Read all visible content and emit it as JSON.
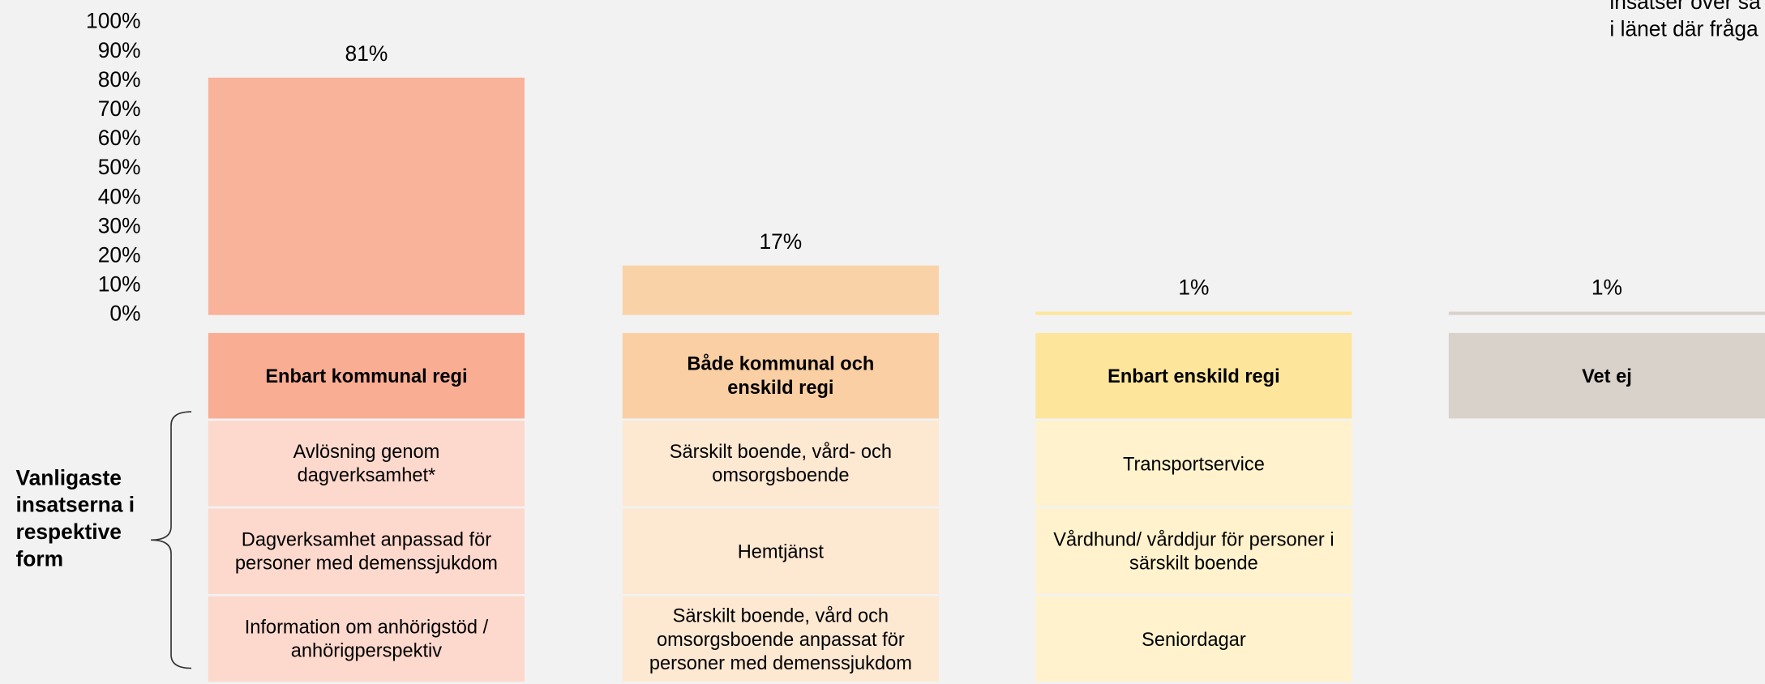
{
  "chart_data": {
    "type": "bar",
    "categories": [
      "Enbart kommunal regi",
      "Både kommunal och enskild regi",
      "Enbart enskild regi",
      "Vet ej"
    ],
    "values": [
      81,
      17,
      1,
      1
    ],
    "value_labels": [
      "81%",
      "17%",
      "1%",
      "1%"
    ],
    "colors": [
      "#f9b39a",
      "#fad2a8",
      "#fde59b",
      "#d8d2cb"
    ],
    "header_colors": [
      "#f9ad93",
      "#f9cfa3",
      "#fde59b",
      "#d8d2cb"
    ],
    "cell_colors": [
      "#fdd8cc",
      "#fde8d2",
      "#fff2cc",
      "#ece8e4"
    ],
    "ylim": [
      0,
      100
    ],
    "yticks": [
      {
        "value": 0,
        "label": "0%"
      },
      {
        "value": 10,
        "label": "10%"
      },
      {
        "value": 20,
        "label": "20%"
      },
      {
        "value": 30,
        "label": "30%"
      },
      {
        "value": 40,
        "label": "40%"
      },
      {
        "value": 50,
        "label": "50%"
      },
      {
        "value": 60,
        "label": "60%"
      },
      {
        "value": 70,
        "label": "70%"
      },
      {
        "value": 80,
        "label": "80%"
      },
      {
        "value": 90,
        "label": "90%"
      },
      {
        "value": 100,
        "label": "100%"
      }
    ],
    "annotation_lines": [
      "insatser över sa",
      "i länet där fråga"
    ]
  },
  "table": {
    "label": "Vanligaste insatserna i respektive form",
    "columns": [
      [
        "Avlösning genom dagverksamhet*",
        "Dagverksamhet anpassad för personer med demenssjukdom",
        "Information om anhörigstöd / anhörigperspektiv"
      ],
      [
        "Särskilt boende, vård- och omsorgsboende",
        "Hemtjänst",
        "Särskilt boende, vård och omsorgsboende anpassat för personer med demenssjukdom"
      ],
      [
        "Transportservice",
        "Vårdhund/ vårddjur för personer i särskilt boende",
        "Seniordagar"
      ],
      []
    ]
  }
}
